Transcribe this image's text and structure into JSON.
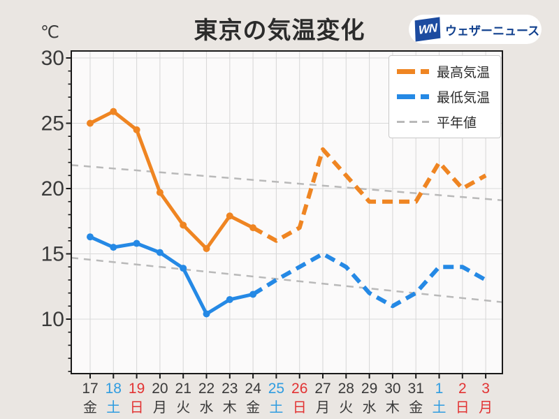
{
  "title": "東京の気温変化",
  "y_unit": "℃",
  "logo": {
    "mark": "WN",
    "name": "ウェザーニュース"
  },
  "legend": [
    {
      "label": "最高気温",
      "color": "#ef8522"
    },
    {
      "label": "最低気温",
      "color": "#2589e5"
    },
    {
      "label": "平年値",
      "color": "#b9b9b9"
    }
  ],
  "chart_data": {
    "type": "line",
    "title": "東京の気温変化",
    "x_categories": [
      {
        "date": "17",
        "weekday": "金",
        "color": "#3a3a3a"
      },
      {
        "date": "18",
        "weekday": "土",
        "color": "#2f9ce0"
      },
      {
        "date": "19",
        "weekday": "日",
        "color": "#e23333"
      },
      {
        "date": "20",
        "weekday": "月",
        "color": "#3a3a3a"
      },
      {
        "date": "21",
        "weekday": "火",
        "color": "#3a3a3a"
      },
      {
        "date": "22",
        "weekday": "水",
        "color": "#3a3a3a"
      },
      {
        "date": "23",
        "weekday": "木",
        "color": "#3a3a3a"
      },
      {
        "date": "24",
        "weekday": "金",
        "color": "#3a3a3a"
      },
      {
        "date": "25",
        "weekday": "土",
        "color": "#2f9ce0"
      },
      {
        "date": "26",
        "weekday": "日",
        "color": "#e23333"
      },
      {
        "date": "27",
        "weekday": "月",
        "color": "#3a3a3a"
      },
      {
        "date": "28",
        "weekday": "火",
        "color": "#3a3a3a"
      },
      {
        "date": "29",
        "weekday": "水",
        "color": "#3a3a3a"
      },
      {
        "date": "30",
        "weekday": "木",
        "color": "#3a3a3a"
      },
      {
        "date": "31",
        "weekday": "金",
        "color": "#3a3a3a"
      },
      {
        "date": "1",
        "weekday": "土",
        "color": "#2f9ce0"
      },
      {
        "date": "2",
        "weekday": "日",
        "color": "#e23333"
      },
      {
        "date": "3",
        "weekday": "月",
        "color": "#e23333"
      }
    ],
    "series": [
      {
        "name": "最高気温",
        "color": "#ef8522",
        "values": [
          25.0,
          25.9,
          24.5,
          19.7,
          17.2,
          15.4,
          17.9,
          17.0,
          16.0,
          17.0,
          23.0,
          21.0,
          19.0,
          19.0,
          19.0,
          22.0,
          20.0,
          21.0
        ],
        "solid_until_index": 7
      },
      {
        "name": "最低気温",
        "color": "#2589e5",
        "values": [
          16.3,
          15.5,
          15.8,
          15.1,
          13.9,
          10.4,
          11.5,
          11.9,
          13.0,
          14.0,
          15.0,
          14.0,
          12.0,
          11.0,
          12.0,
          14.0,
          14.0,
          13.0
        ],
        "solid_until_index": 7
      }
    ],
    "normals": [
      {
        "name": "平年値(最高気温)",
        "color": "#b9b9b9",
        "start": 21.8,
        "end": 19.1
      },
      {
        "name": "平年値(最低気温)",
        "color": "#b9b9b9",
        "start": 14.7,
        "end": 11.3
      }
    ],
    "yticks": [
      30,
      25,
      20,
      15,
      10
    ],
    "ylim": [
      5.8,
      30.4
    ],
    "grid": true,
    "legend_position": "top-right"
  }
}
